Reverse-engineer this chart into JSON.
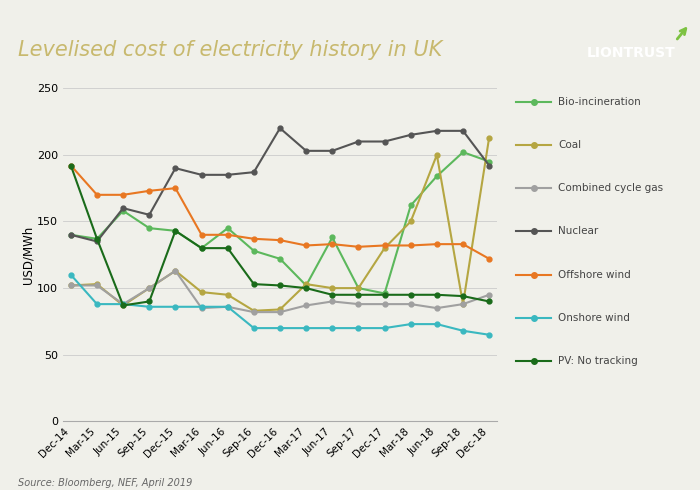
{
  "title": "Levelised cost of electricity history in UK",
  "subtitle_source": "Source: Bloomberg, NEF, April 2019",
  "ylabel": "USD/MWh",
  "background_title": "#2a2a2a",
  "background_chart": "#f0f0ea",
  "title_color": "#c8b96e",
  "logo_text": "LIONTRUST",
  "logo_color": "#ffffff",
  "logo_dot_color": "#7dc242",
  "x_labels": [
    "Dec-14",
    "Mar-15",
    "Jun-15",
    "Sep-15",
    "Dec-15",
    "Mar-16",
    "Jun-16",
    "Sep-16",
    "Dec-16",
    "Mar-17",
    "Jun-17",
    "Sep-17",
    "Dec-17",
    "Mar-18",
    "Jun-18",
    "Sep-18",
    "Dec-18"
  ],
  "ylim": [
    0,
    250
  ],
  "yticks": [
    0,
    50,
    100,
    150,
    200,
    250
  ],
  "series": [
    {
      "name": "Bio-incineration",
      "color": "#5cb85c",
      "marker": "o",
      "linewidth": 1.5,
      "values": [
        140,
        137,
        158,
        145,
        143,
        130,
        145,
        128,
        122,
        102,
        138,
        100,
        96,
        162,
        184,
        202,
        195
      ]
    },
    {
      "name": "Coal",
      "color": "#b5a642",
      "marker": "o",
      "linewidth": 1.5,
      "values": [
        102,
        103,
        87,
        100,
        113,
        97,
        95,
        83,
        84,
        103,
        100,
        100,
        130,
        150,
        200,
        88,
        213
      ]
    },
    {
      "name": "Combined cycle gas",
      "color": "#a0a0a0",
      "marker": "o",
      "linewidth": 1.5,
      "values": [
        102,
        102,
        88,
        100,
        113,
        85,
        86,
        82,
        82,
        87,
        90,
        88,
        88,
        88,
        85,
        88,
        95
      ]
    },
    {
      "name": "Nuclear",
      "color": "#555555",
      "marker": "o",
      "linewidth": 1.5,
      "values": [
        140,
        135,
        160,
        155,
        190,
        185,
        185,
        187,
        220,
        203,
        203,
        210,
        210,
        215,
        218,
        218,
        192
      ]
    },
    {
      "name": "Offshore wind",
      "color": "#e87722",
      "marker": "o",
      "linewidth": 1.5,
      "values": [
        192,
        170,
        170,
        173,
        175,
        140,
        140,
        137,
        136,
        132,
        133,
        131,
        132,
        132,
        133,
        133,
        122
      ]
    },
    {
      "name": "Onshore wind",
      "color": "#3ab8c0",
      "marker": "o",
      "linewidth": 1.5,
      "values": [
        110,
        88,
        88,
        86,
        86,
        86,
        86,
        70,
        70,
        70,
        70,
        70,
        70,
        73,
        73,
        68,
        65
      ]
    },
    {
      "name": "PV: No tracking",
      "color": "#1a6b1a",
      "marker": "o",
      "linewidth": 1.5,
      "values": [
        192,
        137,
        87,
        90,
        143,
        130,
        130,
        103,
        102,
        100,
        95,
        95,
        95,
        95,
        95,
        94,
        90
      ]
    }
  ]
}
